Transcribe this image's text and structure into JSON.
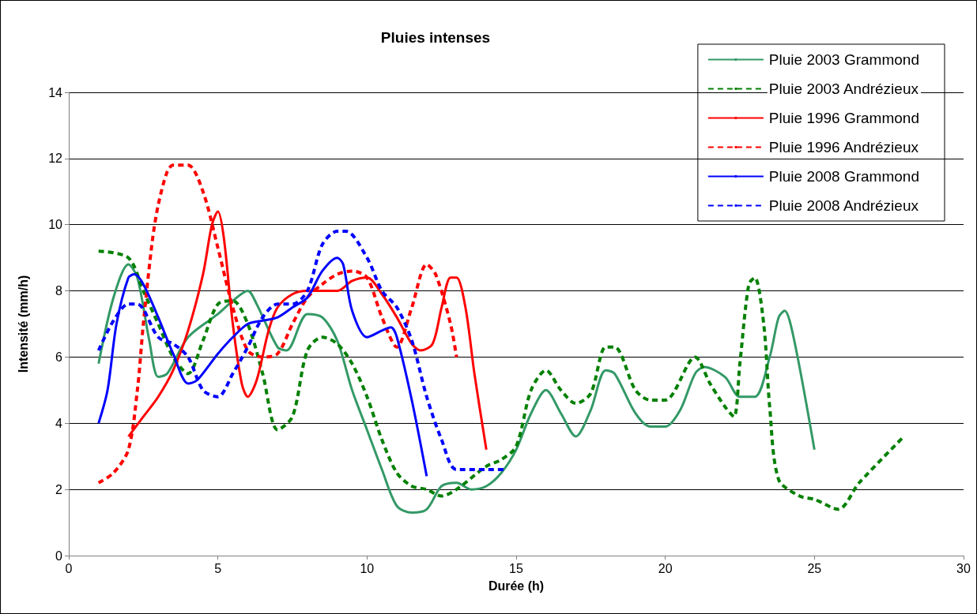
{
  "chart_data": {
    "type": "line",
    "title": "Pluies intenses",
    "xlabel": "Durée (h)",
    "ylabel": "Intensité (mm/h)",
    "xlim": [
      0,
      30
    ],
    "xticks": [
      0,
      5,
      10,
      15,
      20,
      25,
      30
    ],
    "ylim": [
      0,
      14
    ],
    "yticks": [
      0,
      2,
      4,
      6,
      8,
      10,
      12,
      14
    ],
    "grid": "y",
    "legend": "top right",
    "marker": "none",
    "series": [
      {
        "name": "Pluie 2003 Grammond",
        "color": "#339966",
        "line_style": "solid",
        "x": [
          1,
          1.5,
          2,
          2.3,
          2.7,
          3,
          3.3,
          4,
          5,
          5.5,
          6,
          6.3,
          7,
          7.3,
          8,
          8.5,
          9,
          9.5,
          10,
          10.5,
          11,
          11.5,
          12,
          12.5,
          13,
          13.5,
          14,
          14.5,
          15,
          15.5,
          16,
          16.5,
          17,
          17.5,
          18,
          18.3,
          19,
          19.5,
          20,
          20.5,
          21,
          21.3,
          22,
          22.5,
          23,
          23.5,
          23.8,
          24,
          24.3,
          25
        ],
        "values": [
          5.8,
          7.8,
          8.8,
          8.4,
          6.5,
          5.4,
          5.5,
          6.6,
          7.3,
          7.7,
          8,
          7.6,
          6.3,
          6.2,
          7.3,
          7.2,
          6.5,
          5,
          3.8,
          2.6,
          1.5,
          1.3,
          1.4,
          2.1,
          2.2,
          2,
          2.1,
          2.5,
          3.2,
          4.3,
          5,
          4.3,
          3.6,
          4.4,
          5.6,
          5.5,
          4.3,
          3.9,
          3.9,
          4.4,
          5.5,
          5.7,
          5.4,
          4.8,
          4.8,
          6,
          7.2,
          7.4,
          6.6,
          3.2
        ]
      },
      {
        "name": "Pluie 2003 Andrézieux",
        "color": "#008000",
        "line_style": "dashed",
        "x": [
          1,
          2,
          2.5,
          3,
          3.5,
          4,
          4.5,
          5,
          5.5,
          6,
          6.5,
          7,
          7.5,
          8,
          8.5,
          9,
          9.5,
          10,
          10.5,
          11,
          11.5,
          12,
          12.5,
          13,
          14,
          14.5,
          15,
          15.5,
          16,
          16.5,
          17,
          17.5,
          18,
          18.3,
          19,
          19.5,
          20,
          21,
          21.5,
          22,
          22.3,
          22.5,
          22.8,
          23,
          23.3,
          23.5,
          23.8,
          24.5,
          25,
          25.8,
          26.5,
          28
        ],
        "values": [
          9.2,
          9,
          8,
          7,
          6,
          5.5,
          6.5,
          7.6,
          7.7,
          7,
          5.5,
          3.8,
          4.2,
          6.2,
          6.6,
          6.4,
          5.8,
          4.8,
          3.5,
          2.5,
          2.1,
          2,
          1.8,
          2,
          2.7,
          2.9,
          3.3,
          5,
          5.6,
          5,
          4.6,
          4.9,
          6.3,
          6.3,
          5,
          4.7,
          4.7,
          6,
          5.2,
          4.5,
          4.2,
          5.8,
          8.2,
          8.4,
          7,
          4.5,
          2.3,
          1.8,
          1.7,
          1.4,
          2.2,
          3.6
        ]
      },
      {
        "name": "Pluie 1996 Grammond",
        "color": "#ff0000",
        "line_style": "solid",
        "x": [
          2,
          2.5,
          3,
          3.5,
          4,
          4.5,
          4.8,
          5,
          5.2,
          5.5,
          5.8,
          6,
          6.3,
          6.7,
          7,
          7.5,
          8,
          9,
          9.5,
          10,
          10.5,
          11,
          11.5,
          11.8,
          12.2,
          12.5,
          12.8,
          13,
          13.3,
          13.6,
          14
        ],
        "values": [
          3.6,
          4.2,
          4.8,
          5.6,
          6.8,
          8.5,
          10,
          10.4,
          9.6,
          7,
          5.2,
          4.8,
          5.3,
          6.8,
          7.5,
          7.9,
          8,
          8,
          8.3,
          8.4,
          7.9,
          7.2,
          6.4,
          6.2,
          6.4,
          7.5,
          8.4,
          8.4,
          7.5,
          5.5,
          3.2
        ]
      },
      {
        "name": "Pluie 1996 Andrézieux",
        "color": "#ff0000",
        "line_style": "dashed",
        "x": [
          1,
          1.5,
          2,
          2.3,
          2.5,
          2.8,
          3,
          3.3,
          3.5,
          4,
          4.5,
          5,
          5.5,
          6,
          6.5,
          7,
          7.5,
          8,
          8.5,
          9,
          9.5,
          10,
          10.5,
          11,
          11.5,
          12,
          12.3,
          12.8,
          13
        ],
        "values": [
          2.2,
          2.5,
          3.2,
          5,
          7,
          9.5,
          10.6,
          11.6,
          11.8,
          11.8,
          11,
          9.3,
          7.5,
          6.2,
          6,
          6.1,
          7,
          7.8,
          8.2,
          8.5,
          8.6,
          8.4,
          7.2,
          6.3,
          7.5,
          8.8,
          8.5,
          7,
          6
        ]
      },
      {
        "name": "Pluie 2008 Grammond",
        "color": "#0000ff",
        "line_style": "solid",
        "x": [
          1,
          1.3,
          1.6,
          2,
          2.2,
          2.5,
          3,
          3.5,
          4,
          4.3,
          5,
          5.5,
          6,
          6.5,
          7,
          7.5,
          8,
          8.5,
          9,
          9.2,
          9.5,
          10,
          10.5,
          10.8,
          11,
          11.5,
          12
        ],
        "values": [
          4,
          5,
          7,
          8.4,
          8.5,
          8.2,
          7.2,
          6.1,
          5.2,
          5.3,
          6.1,
          6.6,
          7,
          7.1,
          7.2,
          7.5,
          7.8,
          8.6,
          9,
          8.8,
          7.4,
          6.6,
          6.8,
          6.9,
          6.6,
          4.7,
          2.4
        ]
      },
      {
        "name": "Pluie 2008 Andrézieux",
        "color": "#0000ff",
        "line_style": "dashed",
        "x": [
          1,
          1.5,
          2,
          2.3,
          3,
          3.5,
          4,
          4.5,
          5,
          5.5,
          6,
          6.5,
          7,
          7.5,
          8,
          8.5,
          9,
          9.3,
          10,
          10.5,
          11,
          11.5,
          12,
          12.5,
          13,
          14,
          14.7
        ],
        "values": [
          6.2,
          7.1,
          7.6,
          7.6,
          6.6,
          6.4,
          6,
          5,
          4.8,
          5.5,
          6.3,
          7.2,
          7.6,
          7.6,
          8,
          9.4,
          9.8,
          9.8,
          9,
          8,
          7.5,
          6.5,
          4.8,
          3.5,
          2.6,
          2.6,
          2.6
        ]
      }
    ]
  }
}
